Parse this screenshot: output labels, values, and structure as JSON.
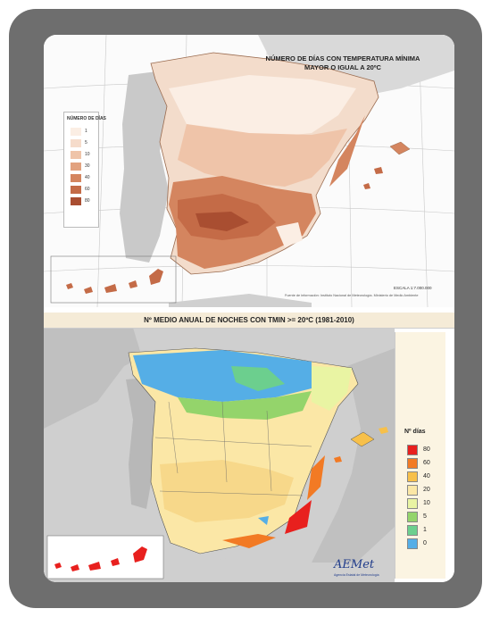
{
  "map_top": {
    "title": "NÚMERO DE DÍAS CON TEMPERATURA MÍNIMA",
    "title_line2": "MAYOR O IGUAL A 20ºC",
    "legend_title": "NÚMERO DE DÍAS",
    "legend": [
      {
        "value": "1",
        "color": "#fbeee4"
      },
      {
        "value": "5",
        "color": "#f6dccb"
      },
      {
        "value": "10",
        "color": "#efc4a9"
      },
      {
        "value": "30",
        "color": "#e2a27f"
      },
      {
        "value": "40",
        "color": "#d4855f"
      },
      {
        "value": "60",
        "color": "#c46b47"
      },
      {
        "value": "80",
        "color": "#a94e31"
      }
    ],
    "scale": "ESCALA 1:7.000.000",
    "source": "Fuente de información: Instituto Nacional de Meteorología. Ministerio de Medio Ambiente"
  },
  "map_bottom": {
    "title": "Nº MEDIO ANUAL DE NOCHES CON TMIN >= 20ºC (1981-2010)",
    "legend_title": "Nº días",
    "legend": [
      {
        "value": "80",
        "color": "#e8201e"
      },
      {
        "value": "60",
        "color": "#f27a24"
      },
      {
        "value": "40",
        "color": "#f7c04a"
      },
      {
        "value": "20",
        "color": "#fbe7a6"
      },
      {
        "value": "10",
        "color": "#e9f4a3"
      },
      {
        "value": "5",
        "color": "#94d46b"
      },
      {
        "value": "1",
        "color": "#6ccf8e"
      },
      {
        "value": "0",
        "color": "#55aee6"
      }
    ],
    "logo": "AEMet",
    "logo_sub": "Agencia Estatal de Meteorología"
  },
  "colors": {
    "frame": "#6e6e6e",
    "sea": "#66a6dd",
    "land_bg": "#c9c9c9"
  }
}
